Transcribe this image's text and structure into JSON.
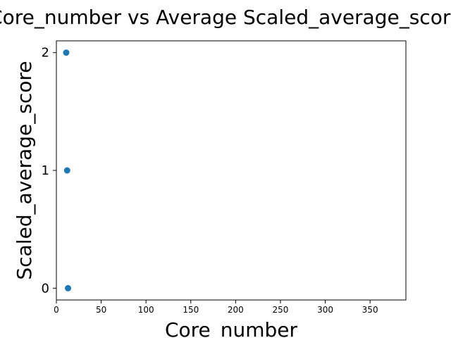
{
  "chart_data": {
    "type": "scatter",
    "title": "Core_number vs Average Scaled_average_score",
    "xlabel": "Core_number",
    "ylabel": "Scaled_average_score",
    "xlim": [
      0,
      390
    ],
    "ylim": [
      -0.1,
      2.1
    ],
    "xticks": [
      0,
      50,
      100,
      150,
      200,
      250,
      300,
      350
    ],
    "yticks": [
      0,
      1,
      2
    ],
    "grid": false,
    "points": [
      {
        "x": 11,
        "y": 2
      },
      {
        "x": 12,
        "y": 1
      },
      {
        "x": 13,
        "y": 0
      }
    ],
    "marker_color": "#1f77b4"
  }
}
